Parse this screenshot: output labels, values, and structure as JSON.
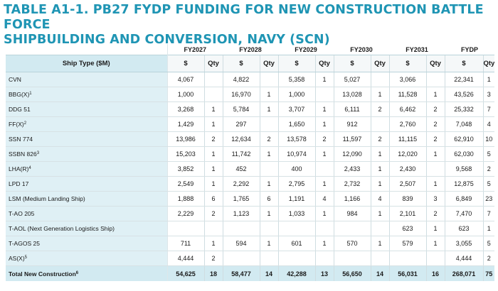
{
  "title_line1": "TABLE A1-1.  PB27 FYDP FUNDING FOR NEW CONSTRUCTION BATTLE FORCE",
  "title_line2": "SHIPBUILDING AND CONVERSION, NAVY (SCN)",
  "years": [
    "FY2027",
    "FY2028",
    "FY2029",
    "FY2030",
    "FY2031",
    "FYDP"
  ],
  "header": {
    "ship_type": "Ship Type   ($M)",
    "dollar": "$",
    "qty": "Qty"
  },
  "rows": [
    {
      "name": "CVN",
      "sup": "",
      "cells": [
        [
          "4,067",
          ""
        ],
        [
          "4,822",
          ""
        ],
        [
          "5,358",
          "1"
        ],
        [
          "5,027",
          ""
        ],
        [
          "3,066",
          ""
        ],
        [
          "22,341",
          "1"
        ]
      ]
    },
    {
      "name": "BBG(X)",
      "sup": "1",
      "cells": [
        [
          "1,000",
          ""
        ],
        [
          "16,970",
          "1"
        ],
        [
          "1,000",
          ""
        ],
        [
          "13,028",
          "1"
        ],
        [
          "11,528",
          "1"
        ],
        [
          "43,526",
          "3"
        ]
      ]
    },
    {
      "name": "DDG 51",
      "sup": "",
      "cells": [
        [
          "3,268",
          "1"
        ],
        [
          "5,784",
          "1"
        ],
        [
          "3,707",
          "1"
        ],
        [
          "6,111",
          "2"
        ],
        [
          "6,462",
          "2"
        ],
        [
          "25,332",
          "7"
        ]
      ]
    },
    {
      "name": "FF(X)",
      "sup": "2",
      "cells": [
        [
          "1,429",
          "1"
        ],
        [
          "297",
          ""
        ],
        [
          "1,650",
          "1"
        ],
        [
          "912",
          ""
        ],
        [
          "2,760",
          "2"
        ],
        [
          "7,048",
          "4"
        ]
      ]
    },
    {
      "name": "SSN 774",
      "sup": "",
      "cells": [
        [
          "13,986",
          "2"
        ],
        [
          "12,634",
          "2"
        ],
        [
          "13,578",
          "2"
        ],
        [
          "11,597",
          "2"
        ],
        [
          "11,115",
          "2"
        ],
        [
          "62,910",
          "10"
        ]
      ]
    },
    {
      "name": "SSBN 826",
      "sup": "3",
      "cells": [
        [
          "15,203",
          "1"
        ],
        [
          "11,742",
          "1"
        ],
        [
          "10,974",
          "1"
        ],
        [
          "12,090",
          "1"
        ],
        [
          "12,020",
          "1"
        ],
        [
          "62,030",
          "5"
        ]
      ]
    },
    {
      "name": "LHA(R)",
      "sup": "4",
      "cells": [
        [
          "3,852",
          "1"
        ],
        [
          "452",
          ""
        ],
        [
          "400",
          ""
        ],
        [
          "2,433",
          "1"
        ],
        [
          "2,430",
          ""
        ],
        [
          "9,568",
          "2"
        ]
      ]
    },
    {
      "name": "LPD 17",
      "sup": "",
      "cells": [
        [
          "2,549",
          "1"
        ],
        [
          "2,292",
          "1"
        ],
        [
          "2,795",
          "1"
        ],
        [
          "2,732",
          "1"
        ],
        [
          "2,507",
          "1"
        ],
        [
          "12,875",
          "5"
        ]
      ]
    },
    {
      "name": "LSM (Medium Landing Ship)",
      "sup": "",
      "cells": [
        [
          "1,888",
          "6"
        ],
        [
          "1,765",
          "6"
        ],
        [
          "1,191",
          "4"
        ],
        [
          "1,166",
          "4"
        ],
        [
          "839",
          "3"
        ],
        [
          "6,849",
          "23"
        ]
      ]
    },
    {
      "name": "T-AO 205",
      "sup": "",
      "cells": [
        [
          "2,229",
          "2"
        ],
        [
          "1,123",
          "1"
        ],
        [
          "1,033",
          "1"
        ],
        [
          "984",
          "1"
        ],
        [
          "2,101",
          "2"
        ],
        [
          "7,470",
          "7"
        ]
      ]
    },
    {
      "name": "T-AOL (Next Generation Logistics Ship)",
      "sup": "",
      "cells": [
        [
          "",
          ""
        ],
        [
          "",
          ""
        ],
        [
          "",
          ""
        ],
        [
          "",
          ""
        ],
        [
          "623",
          "1"
        ],
        [
          "623",
          "1"
        ]
      ]
    },
    {
      "name": "T-AGOS 25",
      "sup": "",
      "cells": [
        [
          "711",
          "1"
        ],
        [
          "594",
          "1"
        ],
        [
          "601",
          "1"
        ],
        [
          "570",
          "1"
        ],
        [
          "579",
          "1"
        ],
        [
          "3,055",
          "5"
        ]
      ]
    },
    {
      "name": "AS(X)",
      "sup": "5",
      "cells": [
        [
          "4,444",
          "2"
        ],
        [
          "",
          ""
        ],
        [
          "",
          ""
        ],
        [
          "",
          ""
        ],
        [
          "",
          ""
        ],
        [
          "4,444",
          "2"
        ]
      ]
    }
  ],
  "total": {
    "name": "Total New Construction",
    "sup": "6",
    "cells": [
      [
        "54,625",
        "18"
      ],
      [
        "58,477",
        "14"
      ],
      [
        "42,288",
        "13"
      ],
      [
        "56,650",
        "14"
      ],
      [
        "56,031",
        "16"
      ],
      [
        "268,071",
        "75"
      ]
    ]
  }
}
